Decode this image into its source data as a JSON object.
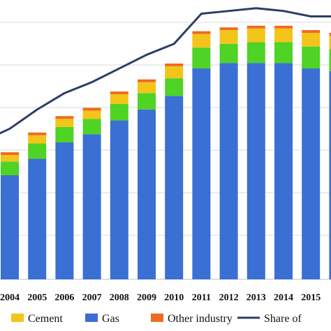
{
  "chart_data": {
    "type": "bar",
    "stacked": true,
    "categories": [
      "2004",
      "2005",
      "2006",
      "2007",
      "2008",
      "2009",
      "2010",
      "2011",
      "2012",
      "2013",
      "2014",
      "2015",
      "20"
    ],
    "series": [
      {
        "name": "Gas",
        "color": "#3a6fd4",
        "values": [
          190,
          220,
          250,
          265,
          290,
          310,
          335,
          385,
          395,
          395,
          395,
          385,
          380
        ]
      },
      {
        "name": "",
        "color": "#4fd325",
        "values": [
          25,
          28,
          28,
          28,
          30,
          30,
          32,
          38,
          35,
          38,
          38,
          40,
          40
        ]
      },
      {
        "name": "Cement",
        "color": "#f3c41a",
        "values": [
          12,
          15,
          15,
          15,
          18,
          20,
          22,
          25,
          25,
          25,
          25,
          25,
          25
        ]
      },
      {
        "name": "Other industry",
        "color": "#ee6a1f",
        "values": [
          5,
          5,
          5,
          5,
          5,
          5,
          5,
          5,
          5,
          5,
          5,
          5,
          5
        ]
      }
    ],
    "line_series": {
      "name": "Share of",
      "color": "#2c3e66",
      "values": [
        275,
        310,
        340,
        360,
        385,
        410,
        430,
        485,
        490,
        495,
        490,
        480,
        480
      ]
    },
    "ylim": [
      0,
      510
    ],
    "grid": true,
    "legend_position": "bottom"
  },
  "legend": [
    {
      "label": "Cement",
      "swatch": "#f3c41a",
      "kind": "box"
    },
    {
      "label": "Gas",
      "swatch": "#3a6fd4",
      "kind": "box"
    },
    {
      "label": "Other industry",
      "swatch": "#ee6a1f",
      "kind": "box"
    },
    {
      "label": "Share of",
      "swatch": "#2c3e66",
      "kind": "line"
    }
  ]
}
